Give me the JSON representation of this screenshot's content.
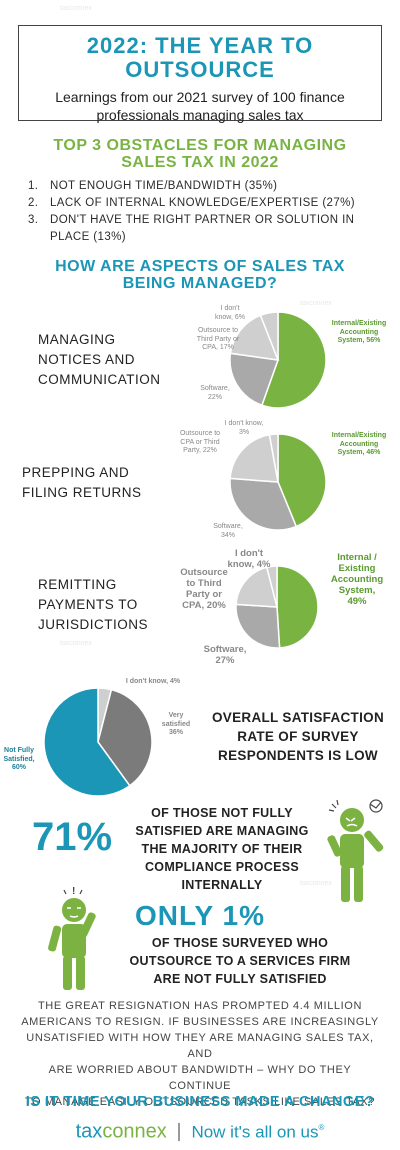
{
  "header": {
    "title_line1": "2022: THE YEAR TO",
    "title_line2": "OUTSOURCE",
    "subtitle_line1": "Learnings from our 2021 survey of 100 finance",
    "subtitle_line2": "professionals managing sales tax"
  },
  "obstacles": {
    "title_line1": "TOP 3 OBSTACLES FOR MANAGING",
    "title_line2": "SALES TAX IN 2022",
    "items": [
      {
        "num": "1.",
        "line1": "NOT ENOUGH TIME/BANDWIDTH (35%)",
        "line2": ""
      },
      {
        "num": "2.",
        "line1": "LACK OF INTERNAL KNOWLEDGE/EXPERTISE (27%)",
        "line2": ""
      },
      {
        "num": "3.",
        "line1": "DON'T HAVE THE RIGHT PARTNER OR SOLUTION IN",
        "line2": "PLACE (13%)"
      }
    ]
  },
  "aspects": {
    "title_line1": "HOW ARE ASPECTS OF SALES TAX",
    "title_line2": "BEING MANAGED?",
    "rows": [
      {
        "label": [
          "MANAGING",
          "NOTICES AND",
          "COMMUNICATION"
        ],
        "slice_labels": {
          "internal": [
            "Internal/Existing",
            "Accounting",
            "System, 56%"
          ],
          "software": [
            "Software,",
            "22%"
          ],
          "outsource": [
            "Outsource to",
            "Third Party or",
            "CPA, 17%"
          ],
          "dontknow": [
            "I don't",
            "know, 6%"
          ]
        }
      },
      {
        "label": [
          "PREPPING AND",
          "FILING RETURNS"
        ],
        "slice_labels": {
          "internal": [
            "Internal/Existing",
            "Accounting",
            "System, 46%"
          ],
          "software": [
            "Software,",
            "34%"
          ],
          "outsource": [
            "Outsource to",
            "CPA or Third",
            "Party, 22%"
          ],
          "dontknow": [
            "I don't know,",
            "3%"
          ]
        }
      },
      {
        "label": [
          "REMITTING",
          "PAYMENTS TO",
          "JURISDICTIONS"
        ],
        "slice_labels": {
          "internal": [
            "Internal /",
            "Existing",
            "Accounting",
            "System,",
            "49%"
          ],
          "software": [
            "Software,",
            "27%"
          ],
          "outsource": [
            "Outsource",
            "to Third",
            "Party or",
            "CPA, 20%"
          ],
          "dontknow": [
            "I don't",
            "know, 4%"
          ]
        }
      }
    ]
  },
  "satisfaction": {
    "title": [
      "OVERALL SATISFACTION",
      "RATE OF SURVEY",
      "RESPONDENTS IS LOW"
    ],
    "labels": {
      "dontknow": "I don't know, 4%",
      "very": [
        "Very",
        "satisfied",
        "36%"
      ],
      "notfully": [
        "Not Fully",
        "Satisfied,",
        "60%"
      ]
    }
  },
  "stat71": {
    "value": "71%",
    "text": [
      "OF THOSE NOT FULLY",
      "SATISFIED ARE MANAGING",
      "THE MAJORITY OF THEIR",
      "COMPLIANCE PROCESS",
      "INTERNALLY"
    ]
  },
  "stat1": {
    "value": "ONLY 1%",
    "text": [
      "OF THOSE SURVEYED WHO",
      "OUTSOURCE TO A SERVICES FIRM",
      "ARE NOT FULLY SATISFIED"
    ]
  },
  "paragraph": [
    "THE GREAT RESIGNATION HAS PROMPTED 4.4 MILLION",
    "AMERICANS TO RESIGN.  IF BUSINESSES ARE INCREASINGLY",
    "UNSATISFIED WITH HOW THEY ARE MANAGING SALES TAX, AND",
    "ARE WORRIED ABOUT BANDWIDTH – WHY DO THEY CONTINUE",
    "TO MANAGE EASILY OUTSOURCED TASKS LIKE SALES TAX?"
  ],
  "cta": "IS IT TIME YOUR BUSINESS MADE A CHANGE?",
  "footer": {
    "brand_tax": "tax",
    "brand_connex": "connex",
    "tagline": "Now it's all on us",
    "reg": "®"
  },
  "watermark": "taxconnex",
  "colors": {
    "teal": "#1c96b6",
    "green": "#79b443",
    "grey_light": "#cfcfcf",
    "grey_mid": "#a9a9a9",
    "grey_dark": "#7b7b7b"
  },
  "chart_data": [
    {
      "type": "pie",
      "title": "MANAGING NOTICES AND COMMUNICATION",
      "categories": [
        "Internal/Existing Accounting System",
        "Software",
        "Outsource to Third Party or CPA",
        "I don't know"
      ],
      "values": [
        56,
        22,
        17,
        6
      ]
    },
    {
      "type": "pie",
      "title": "PREPPING AND FILING RETURNS",
      "categories": [
        "Internal/Existing Accounting System",
        "Software",
        "Outsource to CPA or Third Party",
        "I don't know"
      ],
      "values": [
        46,
        34,
        22,
        3
      ]
    },
    {
      "type": "pie",
      "title": "REMITTING PAYMENTS TO JURISDICTIONS",
      "categories": [
        "Internal / Existing Accounting System",
        "Software",
        "Outsource to Third Party or CPA",
        "I don't know"
      ],
      "values": [
        49,
        27,
        20,
        4
      ]
    },
    {
      "type": "pie",
      "title": "OVERALL SATISFACTION RATE OF SURVEY RESPONDENTS IS LOW",
      "categories": [
        "I don't know",
        "Very satisfied",
        "Not Fully Satisfied"
      ],
      "values": [
        4,
        36,
        60
      ]
    }
  ]
}
